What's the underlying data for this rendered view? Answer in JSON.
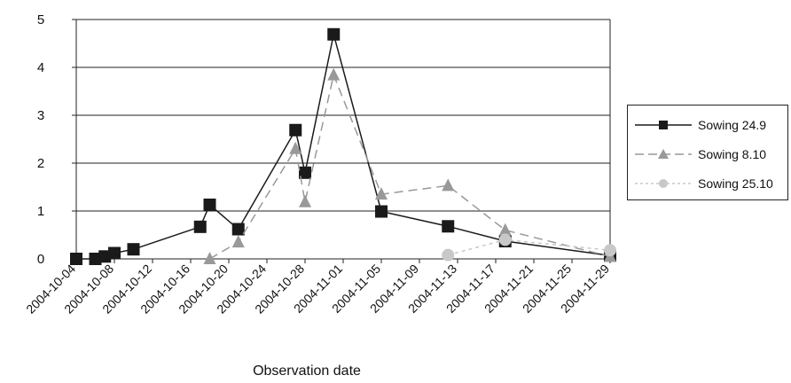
{
  "chart_data": {
    "type": "line",
    "title": "",
    "xlabel": "Observation date",
    "ylabel": "",
    "ylim": [
      0,
      5
    ],
    "yticks": [
      "0",
      "1",
      "2",
      "3",
      "4",
      "5"
    ],
    "xlim": [
      "2004-10-04",
      "2004-11-29"
    ],
    "xticks": [
      "2004-10-04",
      "2004-10-08",
      "2004-10-12",
      "2004-10-16",
      "2004-10-20",
      "2004-10-24",
      "2004-10-28",
      "2004-11-01",
      "2004-11-05",
      "2004-11-09",
      "2004-11-13",
      "2004-11-17",
      "2004-11-21",
      "2004-11-25",
      "2004-11-29"
    ],
    "grid": "horizontal",
    "legend_position": "right",
    "series": [
      {
        "name": "Sowing 24.9",
        "color": "#1a1a1a",
        "marker": "square",
        "line_style": "solid",
        "points": [
          [
            "2004-10-04",
            0.0
          ],
          [
            "2004-10-06",
            0.0
          ],
          [
            "2004-10-07",
            0.05
          ],
          [
            "2004-10-08",
            0.12
          ],
          [
            "2004-10-10",
            0.2
          ],
          [
            "2004-10-17",
            0.67
          ],
          [
            "2004-10-18",
            1.13
          ],
          [
            "2004-10-21",
            0.62
          ],
          [
            "2004-10-27",
            2.69
          ],
          [
            "2004-10-28",
            1.8
          ],
          [
            "2004-10-31",
            4.69
          ],
          [
            "2004-11-05",
            0.99
          ],
          [
            "2004-11-12",
            0.68
          ],
          [
            "2004-11-18",
            0.37
          ],
          [
            "2004-11-29",
            0.07
          ]
        ]
      },
      {
        "name": "Sowing 8.10",
        "color": "#999999",
        "marker": "triangle",
        "line_style": "dashed",
        "points": [
          [
            "2004-10-18",
            0.0
          ],
          [
            "2004-10-21",
            0.35
          ],
          [
            "2004-10-27",
            2.3
          ],
          [
            "2004-10-28",
            1.19
          ],
          [
            "2004-10-31",
            3.84
          ],
          [
            "2004-11-05",
            1.35
          ],
          [
            "2004-11-12",
            1.53
          ],
          [
            "2004-11-18",
            0.6
          ],
          [
            "2004-11-29",
            0.05
          ]
        ]
      },
      {
        "name": "Sowing 25.10",
        "color": "#c8c8c8",
        "marker": "circle",
        "line_style": "dotted",
        "points": [
          [
            "2004-11-12",
            0.08
          ],
          [
            "2004-11-18",
            0.4
          ],
          [
            "2004-11-29",
            0.18
          ]
        ]
      }
    ]
  }
}
